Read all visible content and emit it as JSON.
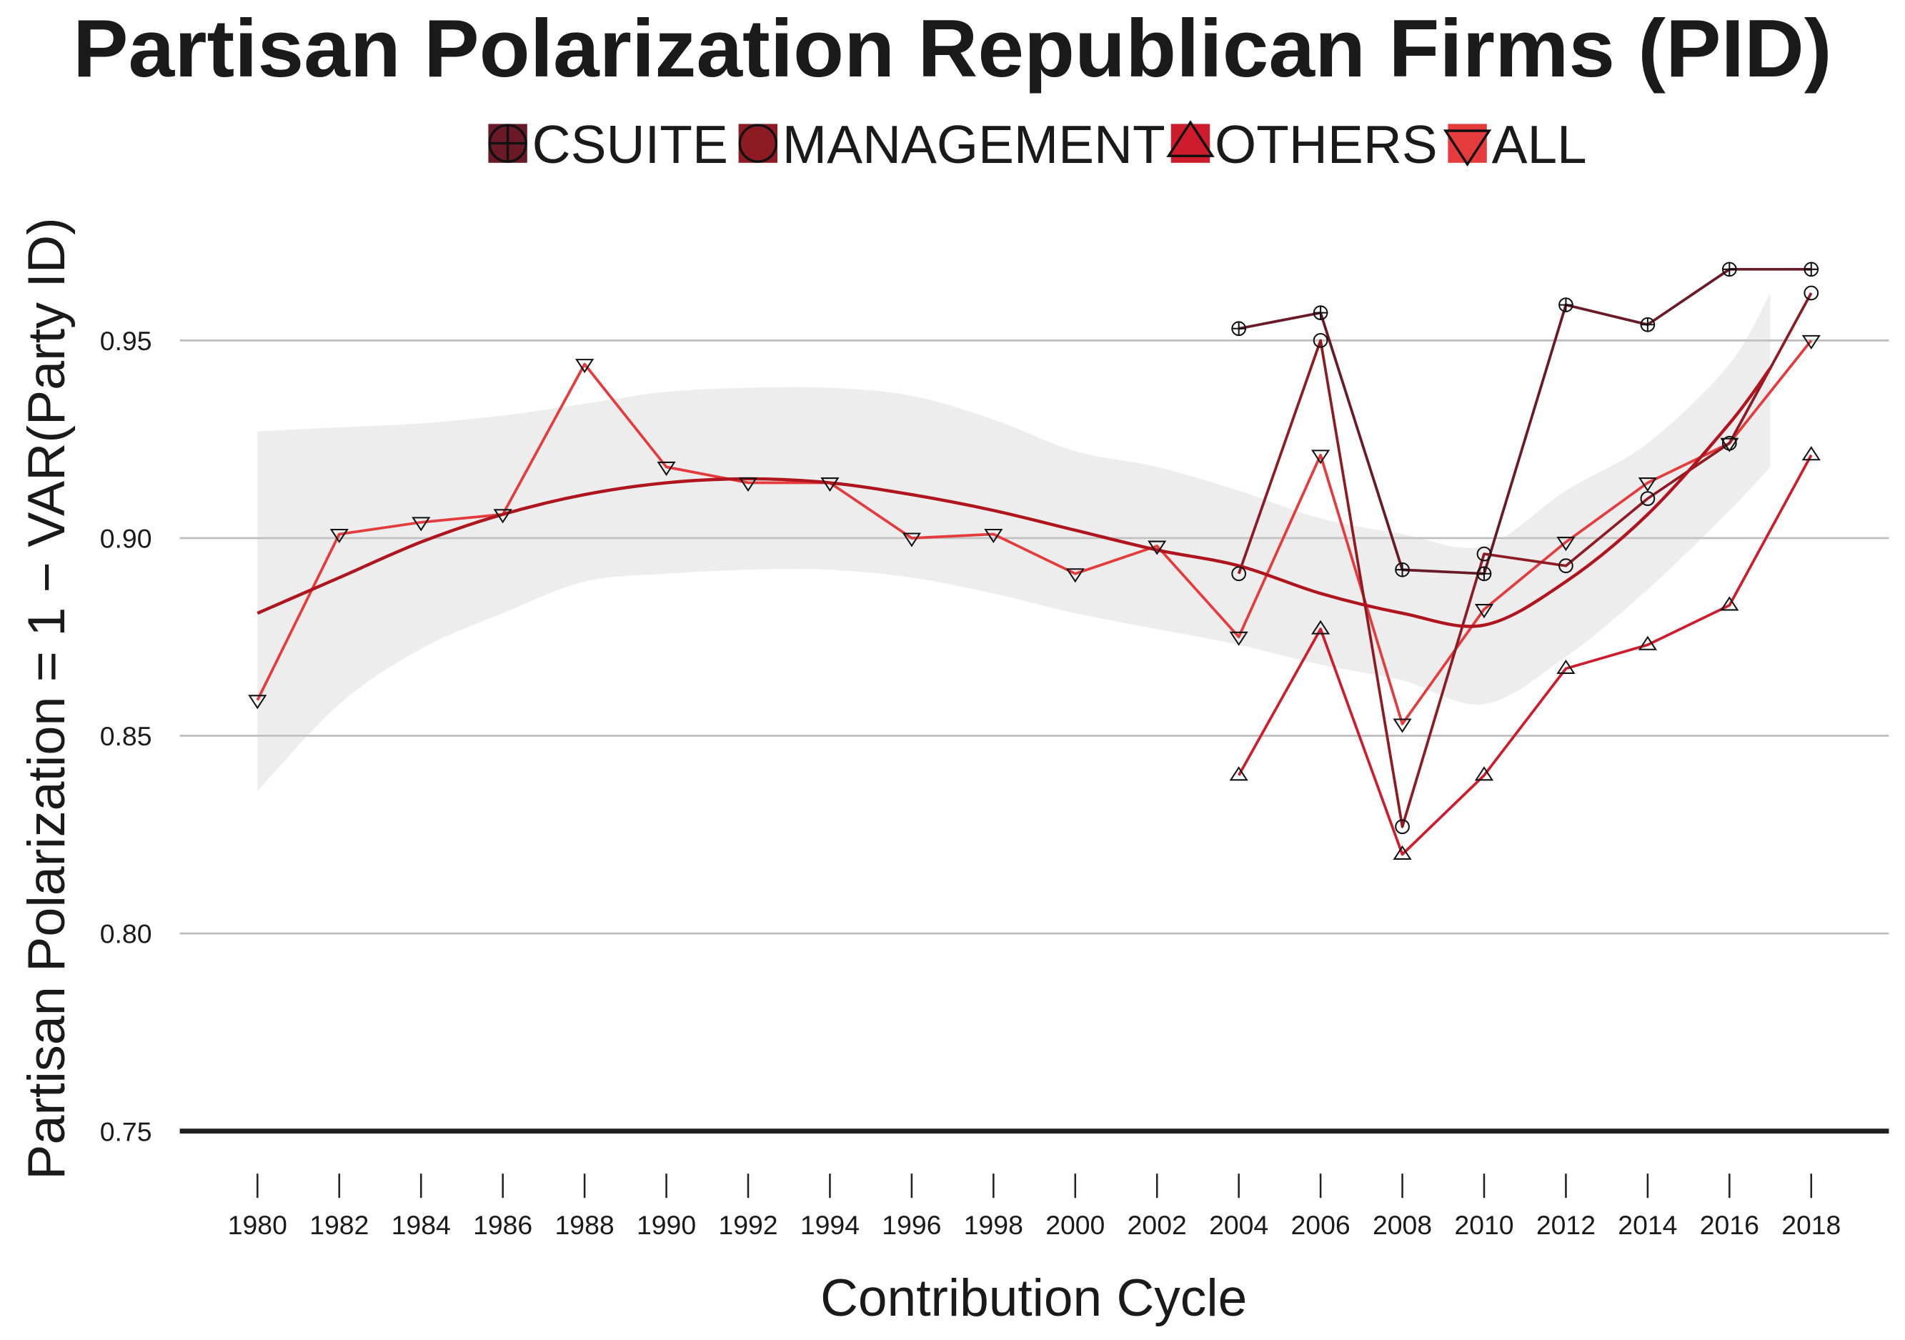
{
  "chart_data": {
    "type": "line",
    "title": "Partisan Polarization Republican Firms (PID)",
    "xlabel": "Contribution Cycle",
    "ylabel": "Partisan Polarization = 1 − VAR(Party ID)",
    "xlim": [
      1978.1,
      2019.9
    ],
    "ylim": [
      0.75,
      0.98
    ],
    "x_ticks": [
      1980,
      1982,
      1984,
      1986,
      1988,
      1990,
      1992,
      1994,
      1996,
      1998,
      2000,
      2002,
      2004,
      2006,
      2008,
      2010,
      2012,
      2014,
      2016,
      2018
    ],
    "y_ticks": [
      "0.75",
      "0.80",
      "0.85",
      "0.90",
      "0.95"
    ],
    "grid": true,
    "legend_position": "top",
    "series": [
      {
        "name": "CSUITE",
        "color": "#6a1a26",
        "marker": "circle-plus-icon",
        "x": [
          2004,
          2006,
          2008,
          2010,
          2012,
          2014,
          2016,
          2018
        ],
        "y": [
          0.953,
          0.957,
          0.892,
          0.891,
          0.959,
          0.954,
          0.968,
          0.968
        ]
      },
      {
        "name": "MANAGEMENT",
        "color": "#8e1a24",
        "marker": "circle-icon",
        "x": [
          2004,
          2006,
          2008,
          2010,
          2012,
          2014,
          2016,
          2018
        ],
        "y": [
          0.891,
          0.95,
          0.827,
          0.896,
          0.893,
          0.91,
          0.924,
          0.962
        ]
      },
      {
        "name": "OTHERS",
        "color": "#cf1c2c",
        "marker": "triangle-up-icon",
        "x": [
          2004,
          2006,
          2008,
          2010,
          2012,
          2014,
          2016,
          2018
        ],
        "y": [
          0.84,
          0.877,
          0.82,
          0.84,
          0.867,
          0.873,
          0.883,
          0.921
        ]
      },
      {
        "name": "ALL",
        "color": "#e53b3c",
        "marker": "triangle-down-icon",
        "x": [
          1980,
          1982,
          1984,
          1986,
          1988,
          1990,
          1992,
          1994,
          1996,
          1998,
          2000,
          2002,
          2004,
          2006,
          2008,
          2010,
          2012,
          2014,
          2016,
          2018
        ],
        "y": [
          0.859,
          0.901,
          0.904,
          0.906,
          0.944,
          0.918,
          0.914,
          0.914,
          0.9,
          0.901,
          0.891,
          0.898,
          0.875,
          0.921,
          0.853,
          0.882,
          0.899,
          0.914,
          0.924,
          0.95
        ]
      }
    ],
    "trend": {
      "color": "#b0141c",
      "band_color": "#c8c8c8",
      "x": [
        1980,
        1982,
        1984,
        1986,
        1988,
        1990,
        1992,
        1994,
        1996,
        1998,
        2000,
        2002,
        2004,
        2006,
        2008,
        2010,
        2012,
        2014,
        2016,
        2017
      ],
      "y": [
        0.881,
        0.89,
        0.899,
        0.906,
        0.911,
        0.914,
        0.915,
        0.914,
        0.911,
        0.907,
        0.902,
        0.897,
        0.893,
        0.886,
        0.881,
        0.878,
        0.889,
        0.906,
        0.929,
        0.943
      ],
      "ci_upper": [
        0.927,
        0.928,
        0.929,
        0.931,
        0.934,
        0.937,
        0.938,
        0.938,
        0.936,
        0.93,
        0.922,
        0.918,
        0.912,
        0.905,
        0.901,
        0.898,
        0.912,
        0.924,
        0.944,
        0.962
      ],
      "ci_lower": [
        0.836,
        0.858,
        0.872,
        0.881,
        0.889,
        0.891,
        0.892,
        0.892,
        0.89,
        0.886,
        0.881,
        0.877,
        0.873,
        0.868,
        0.864,
        0.858,
        0.87,
        0.887,
        0.907,
        0.918
      ]
    }
  }
}
